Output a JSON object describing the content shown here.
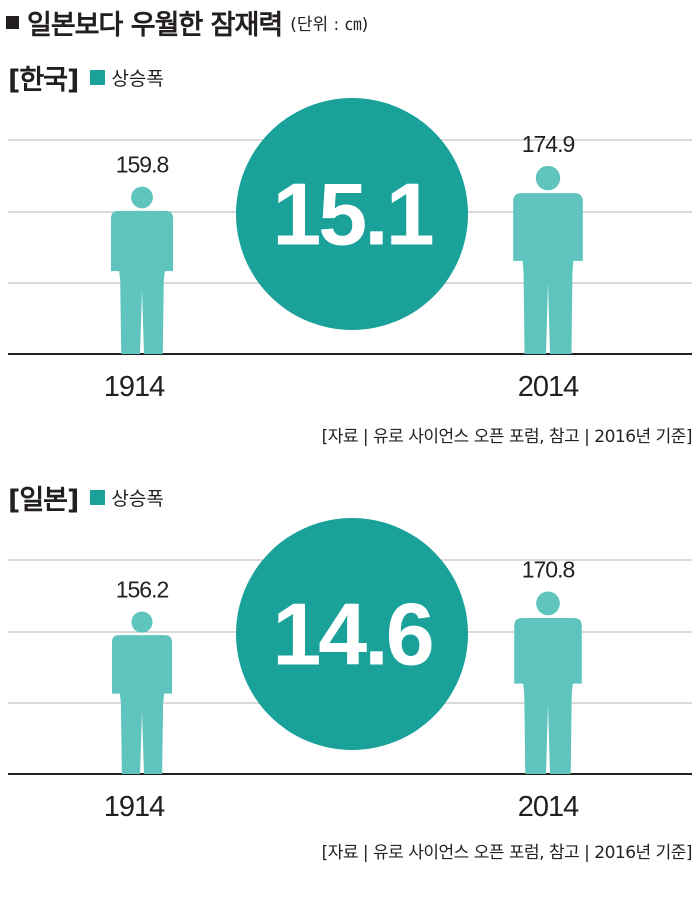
{
  "title": "일본보다 우월한 잠재력",
  "unit": "(단위 : ㎝)",
  "colors": {
    "accent": "#1aa19a",
    "figure": "#5ec4bd",
    "grid": "#b5b5b5",
    "axis": "#231f20"
  },
  "chart_data": [
    {
      "type": "bar",
      "country": "[한국]",
      "legend": "상승폭",
      "categories": [
        "1914",
        "2014"
      ],
      "values": [
        159.8,
        174.9
      ],
      "value_labels": [
        "159.8",
        "174.9"
      ],
      "increase": "15.1",
      "source": "[자료 | 유로 사이언스 오픈 포럼, 참고 | 2016년 기준]"
    },
    {
      "type": "bar",
      "country": "[일본]",
      "legend": "상승폭",
      "categories": [
        "1914",
        "2014"
      ],
      "values": [
        156.2,
        170.8
      ],
      "value_labels": [
        "156.2",
        "170.8"
      ],
      "increase": "14.6",
      "source": "[자료 | 유로 사이언스 오픈 포럼, 참고 | 2016년 기준]"
    }
  ]
}
